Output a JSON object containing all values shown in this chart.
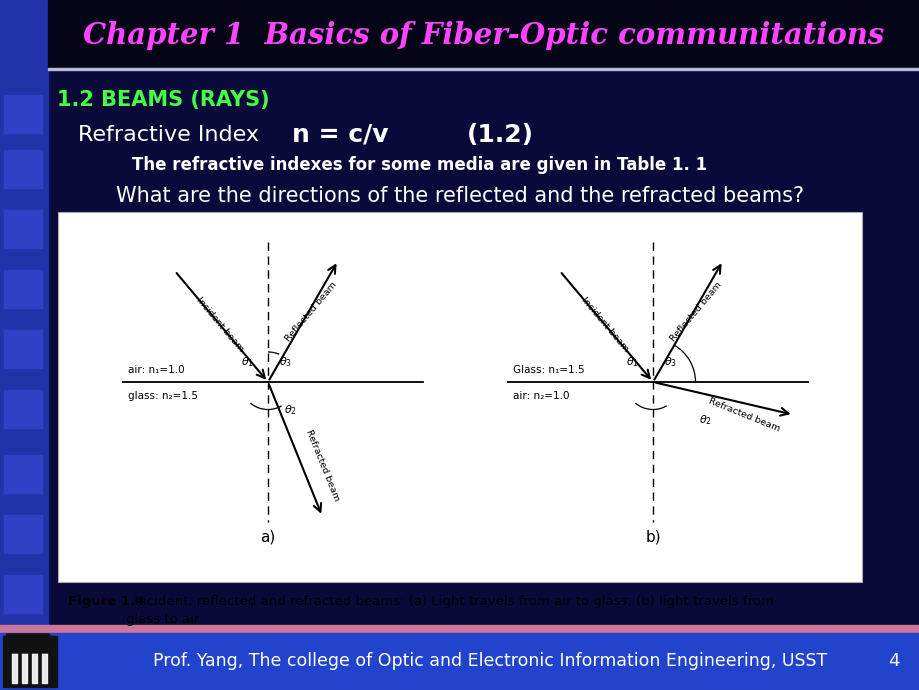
{
  "title": "Chapter 1  Basics of Fiber-Optic communitations",
  "title_color": "#FF44FF",
  "bg_main": "#0a0a3a",
  "bg_left_strip": "#2233BB",
  "section_heading": "1.2 BEAMS (RAYS)",
  "section_heading_color": "#44FF44",
  "line1_left": "Refractive Index",
  "line1_formula": "n = c/v",
  "line1_eq_num": "(1.2)",
  "line2": "The refractive indexes for some media are given in Table 1. 1",
  "line3": "What are the directions of the reflected and the refracted beams?",
  "footer_text": "Prof. Yang, The college of Optic and Electronic Information Engineering, USST",
  "footer_page": "4",
  "footer_bar_color": "#CC88AA",
  "footer_bg": "#2244CC",
  "white": "#FFFFFF",
  "black": "#000000",
  "figure_caption_bold": "Figure 1.4",
  "figure_caption_normal": "  Incident, reflected and refracted beams: (a) Light travels from air to glass; (b) light travels from\nglass to air.",
  "diagram_bg": "#FFFFFF"
}
